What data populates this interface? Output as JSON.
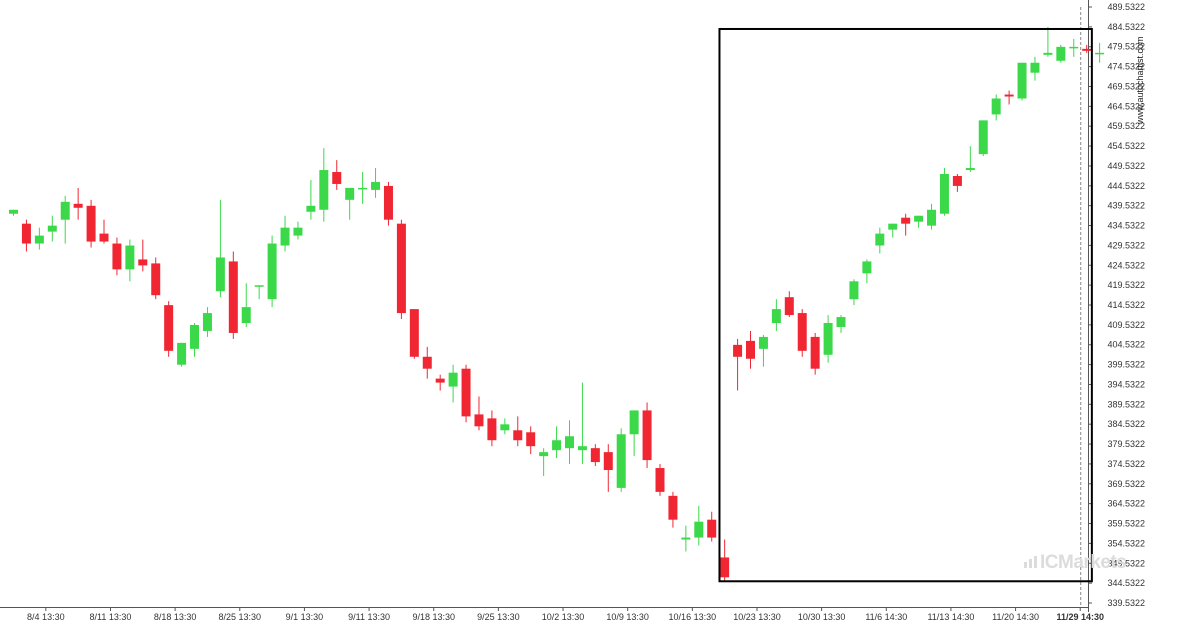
{
  "chart_data": {
    "type": "candlestick",
    "colors": {
      "up": "#3bd94a",
      "down": "#f02633",
      "axis": "#555555",
      "box": "#000000",
      "current_line": "#888888"
    },
    "ylim": [
      339.5322,
      489.5322
    ],
    "y_ticks": [
      "339.5322",
      "344.5322",
      "349.5322",
      "354.5322",
      "359.5322",
      "364.5322",
      "369.5322",
      "374.5322",
      "379.5322",
      "384.5322",
      "389.5322",
      "394.5322",
      "399.5322",
      "404.5322",
      "409.5322",
      "414.5322",
      "419.5322",
      "424.5322",
      "429.5322",
      "434.5322",
      "439.5322",
      "444.5322",
      "449.5322",
      "454.5322",
      "459.5322",
      "464.5322",
      "469.5322",
      "474.5322",
      "479.5322",
      "484.5322",
      "489.5322"
    ],
    "x_ticks": [
      {
        "label": "8/4 13:30",
        "bar": 2.5
      },
      {
        "label": "8/11 13:30",
        "bar": 7.5
      },
      {
        "label": "8/18 13:30",
        "bar": 12.5
      },
      {
        "label": "8/25 13:30",
        "bar": 17.5
      },
      {
        "label": "9/1 13:30",
        "bar": 22.5
      },
      {
        "label": "9/11 13:30",
        "bar": 27.5
      },
      {
        "label": "9/18 13:30",
        "bar": 32.5
      },
      {
        "label": "9/25 13:30",
        "bar": 37.5
      },
      {
        "label": "10/2 13:30",
        "bar": 42.5
      },
      {
        "label": "10/9 13:30",
        "bar": 47.5
      },
      {
        "label": "10/16 13:30",
        "bar": 52.5
      },
      {
        "label": "10/23 13:30",
        "bar": 57.5
      },
      {
        "label": "10/30 13:30",
        "bar": 62.5
      },
      {
        "label": "11/6 14:30",
        "bar": 67.5
      },
      {
        "label": "11/13 14:30",
        "bar": 72.5
      },
      {
        "label": "11/20 14:30",
        "bar": 77.5
      },
      {
        "label": "11/29 14:30",
        "bar": 82.5,
        "current": true
      }
    ],
    "candles": [
      [
        437.5,
        438.5,
        437.0,
        438.5
      ],
      [
        435.0,
        436.0,
        428.0,
        430.0
      ],
      [
        430.0,
        434.0,
        428.5,
        432.0
      ],
      [
        433.0,
        437.0,
        430.5,
        434.5
      ],
      [
        436.0,
        442.0,
        430.0,
        440.5
      ],
      [
        440.0,
        444.0,
        436.0,
        439.0
      ],
      [
        439.5,
        441.0,
        429.0,
        430.5
      ],
      [
        432.5,
        436.0,
        430.0,
        430.5
      ],
      [
        430.0,
        431.5,
        422.0,
        423.5
      ],
      [
        423.5,
        431.0,
        420.5,
        429.5
      ],
      [
        426.0,
        431.0,
        423.0,
        424.5
      ],
      [
        425.0,
        426.5,
        416.0,
        417.0
      ],
      [
        414.5,
        415.5,
        401.5,
        403.0
      ],
      [
        399.5,
        405.0,
        399.0,
        405.0
      ],
      [
        403.5,
        410.0,
        401.5,
        409.5
      ],
      [
        408.0,
        414.0,
        406.5,
        412.5
      ],
      [
        418.0,
        441.0,
        416.5,
        426.5
      ],
      [
        425.5,
        428.0,
        406.0,
        407.5
      ],
      [
        410.0,
        420.0,
        409.0,
        414.0
      ],
      [
        419.5,
        419.5,
        416.0,
        419.5
      ],
      [
        416.0,
        432.0,
        414.0,
        430.0
      ],
      [
        429.5,
        437.0,
        428.0,
        434.0
      ],
      [
        432.0,
        435.5,
        431.0,
        434.0
      ],
      [
        438.0,
        446.0,
        436.0,
        439.5
      ],
      [
        438.5,
        454.0,
        435.5,
        448.5
      ],
      [
        448.0,
        451.0,
        443.5,
        445.0
      ],
      [
        441.0,
        443.5,
        436.0,
        444.0
      ],
      [
        444.0,
        448.0,
        440.0,
        444.0
      ],
      [
        443.5,
        449.0,
        441.5,
        445.5
      ],
      [
        444.5,
        445.5,
        434.5,
        436.0
      ],
      [
        435.0,
        436.0,
        411.0,
        412.5
      ],
      [
        413.5,
        413.5,
        401.0,
        401.5
      ],
      [
        401.5,
        404.0,
        396.0,
        398.5
      ],
      [
        396.0,
        397.0,
        393.0,
        395.0
      ],
      [
        394.0,
        399.5,
        390.0,
        397.5
      ],
      [
        398.5,
        399.5,
        385.0,
        386.5
      ],
      [
        387.0,
        391.5,
        383.0,
        384.0
      ],
      [
        386.0,
        388.0,
        379.0,
        380.5
      ],
      [
        383.0,
        386.0,
        382.0,
        384.5
      ],
      [
        383.0,
        386.5,
        379.0,
        380.5
      ],
      [
        382.5,
        384.0,
        377.0,
        379.0
      ],
      [
        376.5,
        378.5,
        371.5,
        377.5
      ],
      [
        378.0,
        384.0,
        376.0,
        380.5
      ],
      [
        378.5,
        385.5,
        374.5,
        381.5
      ],
      [
        378.0,
        395.0,
        374.5,
        379.0
      ],
      [
        378.5,
        379.5,
        374.0,
        375.0
      ],
      [
        377.5,
        379.5,
        367.5,
        373.0
      ],
      [
        368.5,
        383.5,
        367.5,
        382.0
      ],
      [
        382.0,
        388.0,
        376.5,
        388.0
      ],
      [
        388.0,
        390.0,
        373.5,
        375.5
      ],
      [
        373.5,
        374.5,
        366.5,
        367.5
      ],
      [
        366.5,
        367.5,
        358.5,
        360.5
      ],
      [
        355.5,
        359.0,
        352.5,
        356.0
      ],
      [
        356.0,
        364.0,
        354.0,
        360.0
      ],
      [
        360.5,
        362.5,
        355.0,
        356.0
      ],
      [
        351.0,
        355.5,
        345.0,
        346.0
      ],
      [
        404.5,
        406.0,
        393.0,
        401.5
      ],
      [
        405.5,
        408.0,
        398.5,
        401.0
      ],
      [
        403.5,
        407.0,
        399.0,
        406.5
      ],
      [
        410.0,
        416.0,
        408.0,
        413.5
      ],
      [
        416.5,
        418.0,
        411.5,
        412.0
      ],
      [
        412.5,
        413.5,
        401.5,
        403.0
      ],
      [
        406.5,
        407.5,
        397.0,
        398.5
      ],
      [
        402.0,
        412.0,
        400.0,
        410.0
      ],
      [
        409.0,
        412.0,
        407.5,
        411.5
      ],
      [
        416.0,
        421.0,
        414.5,
        420.5
      ],
      [
        422.5,
        426.0,
        420.0,
        425.5
      ],
      [
        429.5,
        434.0,
        427.5,
        432.5
      ],
      [
        433.5,
        435.0,
        431.5,
        435.0
      ],
      [
        436.5,
        437.5,
        432.0,
        435.0
      ],
      [
        435.5,
        437.0,
        434.0,
        437.0
      ],
      [
        434.5,
        440.0,
        433.5,
        438.5
      ],
      [
        437.5,
        449.0,
        437.0,
        447.5
      ],
      [
        447.0,
        447.5,
        443.0,
        444.5
      ],
      [
        448.5,
        454.5,
        448.0,
        449.0
      ],
      [
        452.5,
        461.0,
        452.0,
        461.0
      ],
      [
        462.5,
        467.5,
        461.0,
        466.5
      ],
      [
        467.5,
        468.5,
        465.0,
        467.0
      ],
      [
        466.5,
        475.5,
        466.0,
        475.5
      ],
      [
        473.0,
        477.0,
        471.0,
        475.5
      ],
      [
        477.5,
        484.5,
        477.0,
        478.0
      ],
      [
        476.0,
        480.0,
        475.5,
        479.5
      ],
      [
        479.5,
        481.5,
        477.0,
        479.5
      ],
      [
        479.0,
        480.0,
        478.0,
        478.5
      ],
      [
        478.0,
        480.5,
        475.5,
        478.0
      ]
    ],
    "box": {
      "from_bar": 54.6,
      "to_bar": 83.4,
      "y_high": 484.0,
      "y_low": 345.0
    },
    "watermark": "www.autochartist.com",
    "brand": "ICMarkets"
  }
}
